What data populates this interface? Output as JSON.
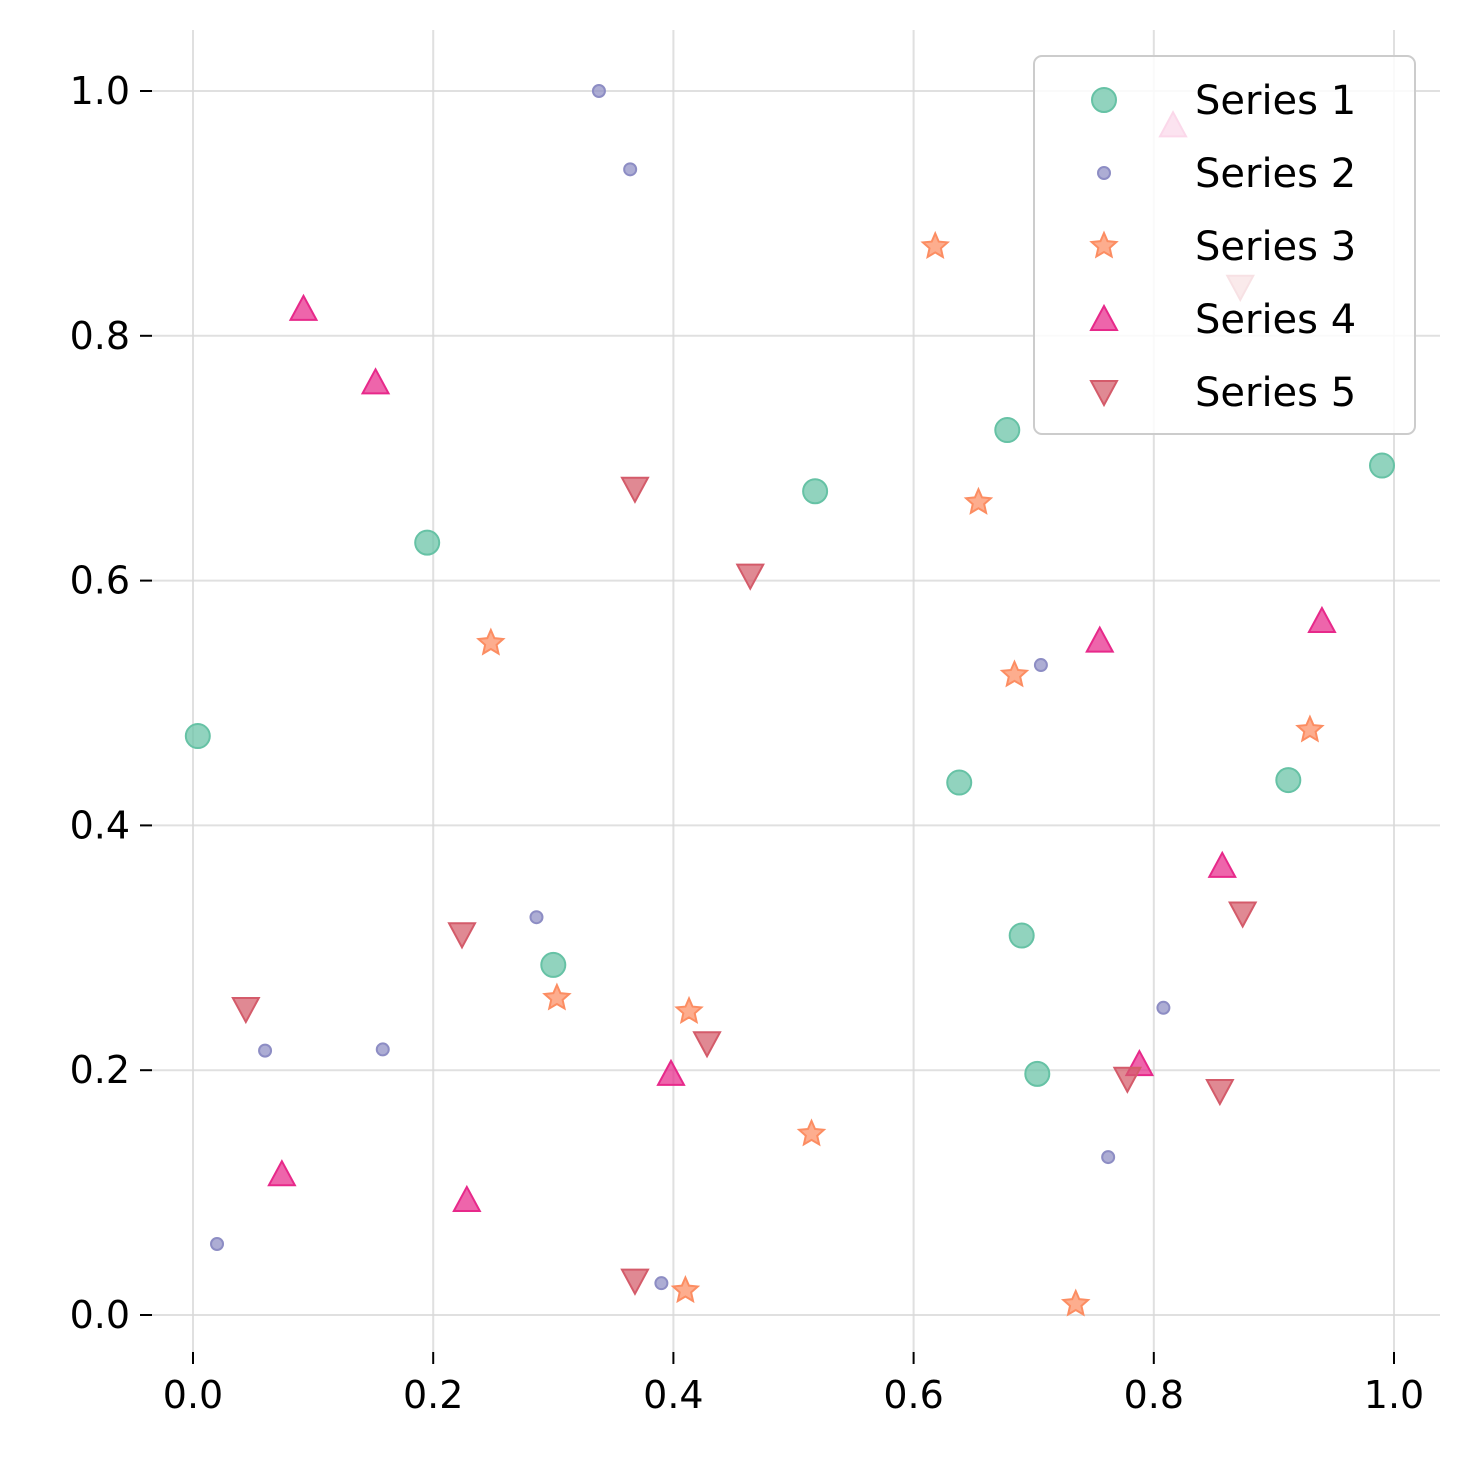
{
  "chart_data": {
    "type": "scatter",
    "title": "",
    "xlabel": "",
    "ylabel": "",
    "xlim": [
      -0.05,
      1.035
    ],
    "ylim": [
      -0.045,
      1.048
    ],
    "x_ticks": [
      0.0,
      0.2,
      0.4,
      0.6,
      0.8,
      1.0
    ],
    "y_ticks": [
      0.0,
      0.2,
      0.4,
      0.6,
      0.8,
      1.0
    ],
    "x_tick_labels": [
      "0.0",
      "0.2",
      "0.4",
      "0.6",
      "0.8",
      "1.0"
    ],
    "y_tick_labels": [
      "0.0",
      "0.2",
      "0.4",
      "0.6",
      "0.8",
      "1.0"
    ],
    "grid": true,
    "legend_position": "top-right",
    "series": [
      {
        "name": "Series 1",
        "marker": "circle",
        "color": "#66c2a5",
        "points": [
          [
            0.004,
            0.473
          ],
          [
            0.195,
            0.631
          ],
          [
            0.3,
            0.286
          ],
          [
            0.518,
            0.673
          ],
          [
            0.638,
            0.435
          ],
          [
            0.678,
            0.723
          ],
          [
            0.69,
            0.31
          ],
          [
            0.703,
            0.197
          ],
          [
            0.912,
            0.437
          ],
          [
            0.99,
            0.694
          ]
        ]
      },
      {
        "name": "Series 2",
        "marker": "small-circle",
        "color": "#8d8dc4",
        "points": [
          [
            0.338,
            1.0
          ],
          [
            0.364,
            0.936
          ],
          [
            0.286,
            0.325
          ],
          [
            0.06,
            0.216
          ],
          [
            0.158,
            0.217
          ],
          [
            0.02,
            0.058
          ],
          [
            0.39,
            0.026
          ],
          [
            0.706,
            0.531
          ],
          [
            0.762,
            0.129
          ],
          [
            0.808,
            0.251
          ]
        ]
      },
      {
        "name": "Series 3",
        "marker": "star",
        "color": "#fc8d62",
        "points": [
          [
            0.618,
            0.873
          ],
          [
            0.654,
            0.664
          ],
          [
            0.248,
            0.549
          ],
          [
            0.684,
            0.523
          ],
          [
            0.93,
            0.478
          ],
          [
            0.303,
            0.259
          ],
          [
            0.413,
            0.248
          ],
          [
            0.515,
            0.148
          ],
          [
            0.41,
            0.02
          ],
          [
            0.735,
            0.009
          ]
        ]
      },
      {
        "name": "Series 4",
        "marker": "triangle-up",
        "color": "#e7298a",
        "points": [
          [
            0.816,
            0.972
          ],
          [
            0.092,
            0.822
          ],
          [
            0.152,
            0.762
          ],
          [
            0.755,
            0.551
          ],
          [
            0.94,
            0.567
          ],
          [
            0.857,
            0.367
          ],
          [
            0.398,
            0.197
          ],
          [
            0.788,
            0.205
          ],
          [
            0.074,
            0.115
          ],
          [
            0.228,
            0.094
          ]
        ]
      },
      {
        "name": "Series 5",
        "marker": "triangle-down",
        "color": "#d45b6a",
        "points": [
          [
            0.872,
            0.84
          ],
          [
            0.368,
            0.675
          ],
          [
            0.464,
            0.604
          ],
          [
            0.224,
            0.311
          ],
          [
            0.044,
            0.25
          ],
          [
            0.428,
            0.222
          ],
          [
            0.778,
            0.193
          ],
          [
            0.855,
            0.183
          ],
          [
            0.874,
            0.328
          ],
          [
            0.368,
            0.028
          ]
        ]
      }
    ]
  }
}
